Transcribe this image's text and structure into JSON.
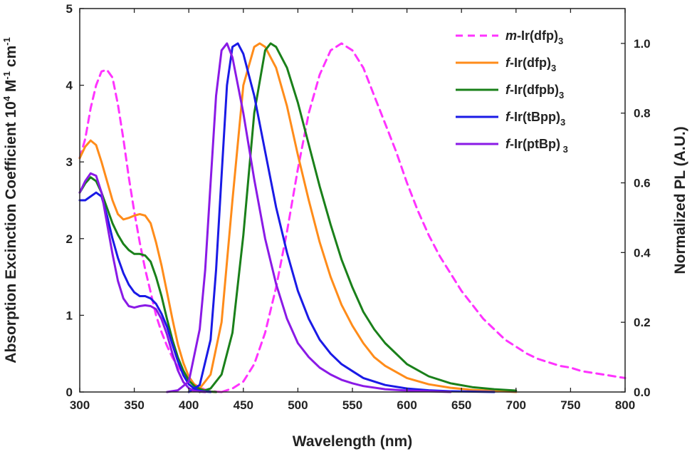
{
  "chart_data": {
    "type": "line",
    "title": "",
    "xlabel": "Wavelength (nm)",
    "ylabel_left": "Absorption Excinction Coefficient 10⁴ M⁻¹ cm⁻¹",
    "ylabel_right": "Normalized PL (A.U.)",
    "xlim": [
      300,
      800
    ],
    "ylim_left": [
      0,
      5
    ],
    "ylim_right": [
      0,
      1.1
    ],
    "x_ticks": [
      300,
      350,
      400,
      450,
      500,
      550,
      600,
      650,
      700,
      750,
      800
    ],
    "y_left_ticks": [
      0,
      1,
      2,
      3,
      4,
      5
    ],
    "y_right_ticks": [
      "0.0",
      "0.2",
      "0.4",
      "0.6",
      "0.8",
      "1.0"
    ],
    "grid": false,
    "legend_position": "top-right",
    "series": [
      {
        "name": "m-Ir(dfp)3",
        "legend_prefix": "m",
        "legend_rest": "-Ir(dfp)",
        "legend_sub": "3",
        "color": "#ff33ff",
        "dashed": true,
        "absorption": {
          "x": [
            300,
            305,
            310,
            315,
            320,
            325,
            330,
            335,
            340,
            345,
            350,
            355,
            360,
            365,
            370,
            375,
            380,
            385,
            390,
            395,
            400,
            405,
            410,
            415,
            420,
            425,
            430
          ],
          "y": [
            3.05,
            3.3,
            3.7,
            4.0,
            4.18,
            4.2,
            4.1,
            3.75,
            3.3,
            2.8,
            2.35,
            1.95,
            1.6,
            1.3,
            1.0,
            0.78,
            0.6,
            0.45,
            0.33,
            0.24,
            0.16,
            0.1,
            0.06,
            0.03,
            0.015,
            0.005,
            0.0
          ]
        },
        "pl": {
          "x": [
            430,
            440,
            450,
            460,
            470,
            480,
            490,
            500,
            510,
            520,
            530,
            540,
            550,
            560,
            570,
            580,
            590,
            600,
            610,
            620,
            630,
            640,
            650,
            660,
            670,
            680,
            690,
            700,
            710,
            720,
            730,
            740,
            750,
            760,
            770,
            780,
            790,
            800
          ],
          "y": [
            0.0,
            0.01,
            0.03,
            0.08,
            0.17,
            0.3,
            0.46,
            0.64,
            0.8,
            0.91,
            0.98,
            1.0,
            0.98,
            0.93,
            0.85,
            0.77,
            0.69,
            0.6,
            0.52,
            0.45,
            0.39,
            0.34,
            0.29,
            0.25,
            0.21,
            0.18,
            0.15,
            0.13,
            0.11,
            0.095,
            0.085,
            0.075,
            0.07,
            0.06,
            0.055,
            0.05,
            0.045,
            0.04
          ]
        }
      },
      {
        "name": "f-Ir(dfp)3",
        "legend_prefix": "f",
        "legend_rest": "-Ir(dfp)",
        "legend_sub": "3",
        "color": "#ff8c1a",
        "dashed": false,
        "absorption": {
          "x": [
            300,
            305,
            310,
            315,
            320,
            325,
            330,
            335,
            340,
            345,
            350,
            355,
            360,
            365,
            370,
            375,
            380,
            385,
            390,
            395,
            400,
            405,
            410,
            415,
            420,
            425
          ],
          "y": [
            3.05,
            3.2,
            3.28,
            3.22,
            3.0,
            2.75,
            2.5,
            2.32,
            2.25,
            2.27,
            2.3,
            2.32,
            2.3,
            2.2,
            1.95,
            1.65,
            1.3,
            0.95,
            0.62,
            0.38,
            0.2,
            0.1,
            0.05,
            0.02,
            0.005,
            0.0
          ]
        },
        "pl": {
          "x": [
            400,
            410,
            420,
            430,
            440,
            450,
            460,
            465,
            470,
            480,
            490,
            500,
            510,
            520,
            530,
            540,
            550,
            560,
            570,
            580,
            600,
            620,
            640,
            660,
            680,
            700
          ],
          "y": [
            0.0,
            0.01,
            0.05,
            0.2,
            0.55,
            0.88,
            0.99,
            1.0,
            0.99,
            0.93,
            0.82,
            0.68,
            0.55,
            0.43,
            0.33,
            0.25,
            0.19,
            0.14,
            0.1,
            0.075,
            0.04,
            0.022,
            0.012,
            0.006,
            0.003,
            0.0
          ]
        }
      },
      {
        "name": "f-Ir(dfpb)3",
        "legend_prefix": "f",
        "legend_rest": "-Ir(dfpb)",
        "legend_sub": "3",
        "color": "#1a801a",
        "dashed": false,
        "absorption": {
          "x": [
            300,
            305,
            310,
            315,
            320,
            325,
            330,
            335,
            340,
            345,
            350,
            355,
            360,
            365,
            370,
            375,
            380,
            385,
            390,
            395,
            400,
            405,
            410,
            415,
            420,
            425
          ],
          "y": [
            2.6,
            2.72,
            2.8,
            2.75,
            2.6,
            2.4,
            2.2,
            2.05,
            1.93,
            1.85,
            1.8,
            1.8,
            1.78,
            1.7,
            1.5,
            1.25,
            0.95,
            0.68,
            0.45,
            0.28,
            0.15,
            0.08,
            0.04,
            0.015,
            0.005,
            0.0
          ]
        },
        "pl": {
          "x": [
            410,
            420,
            430,
            440,
            450,
            460,
            470,
            475,
            480,
            490,
            500,
            510,
            520,
            530,
            540,
            550,
            560,
            570,
            580,
            600,
            620,
            640,
            660,
            680,
            700
          ],
          "y": [
            0.0,
            0.01,
            0.05,
            0.17,
            0.45,
            0.8,
            0.98,
            1.0,
            0.99,
            0.93,
            0.83,
            0.71,
            0.59,
            0.48,
            0.38,
            0.3,
            0.23,
            0.18,
            0.14,
            0.08,
            0.045,
            0.025,
            0.014,
            0.008,
            0.004
          ]
        }
      },
      {
        "name": "f-Ir(tBpp)3",
        "legend_prefix": "f",
        "legend_rest": "-Ir(tBpp)",
        "legend_sub": "3",
        "color": "#1a1ae6",
        "dashed": false,
        "absorption": {
          "x": [
            300,
            305,
            310,
            315,
            320,
            325,
            330,
            335,
            340,
            345,
            350,
            355,
            360,
            365,
            370,
            375,
            380,
            385,
            390,
            395,
            400,
            405,
            410,
            415,
            420
          ],
          "y": [
            2.5,
            2.5,
            2.55,
            2.6,
            2.55,
            2.3,
            2.0,
            1.75,
            1.55,
            1.4,
            1.3,
            1.25,
            1.25,
            1.22,
            1.15,
            1.02,
            0.85,
            0.62,
            0.4,
            0.22,
            0.1,
            0.045,
            0.015,
            0.005,
            0.0
          ]
        },
        "pl": {
          "x": [
            400,
            410,
            420,
            425,
            430,
            435,
            440,
            445,
            450,
            460,
            470,
            480,
            490,
            500,
            510,
            520,
            530,
            540,
            550,
            560,
            580,
            600,
            620,
            640,
            660,
            680
          ],
          "y": [
            0.0,
            0.02,
            0.15,
            0.35,
            0.62,
            0.88,
            0.99,
            1.0,
            0.97,
            0.85,
            0.69,
            0.53,
            0.4,
            0.29,
            0.21,
            0.15,
            0.11,
            0.08,
            0.06,
            0.04,
            0.02,
            0.01,
            0.005,
            0.002,
            0.001,
            0.0
          ]
        }
      },
      {
        "name": "f-Ir(ptBp)3",
        "legend_prefix": "f",
        "legend_rest": "-Ir(ptBp)",
        "legend_sub": " 3",
        "color": "#8a1ae6",
        "dashed": false,
        "absorption": {
          "x": [
            300,
            305,
            310,
            315,
            320,
            325,
            330,
            335,
            340,
            345,
            350,
            355,
            360,
            365,
            370,
            375,
            380,
            385,
            390,
            395,
            400,
            405,
            410,
            415
          ],
          "y": [
            2.6,
            2.75,
            2.85,
            2.82,
            2.6,
            2.2,
            1.8,
            1.45,
            1.22,
            1.12,
            1.1,
            1.12,
            1.13,
            1.12,
            1.08,
            0.95,
            0.75,
            0.5,
            0.28,
            0.13,
            0.05,
            0.015,
            0.005,
            0.0
          ]
        },
        "pl": {
          "x": [
            380,
            390,
            400,
            410,
            415,
            420,
            425,
            430,
            435,
            440,
            450,
            460,
            470,
            480,
            490,
            500,
            510,
            520,
            530,
            540,
            550,
            560,
            580,
            600,
            620,
            640
          ],
          "y": [
            0.0,
            0.005,
            0.03,
            0.18,
            0.35,
            0.6,
            0.85,
            0.98,
            1.0,
            0.96,
            0.8,
            0.61,
            0.44,
            0.31,
            0.21,
            0.14,
            0.1,
            0.07,
            0.05,
            0.035,
            0.025,
            0.017,
            0.008,
            0.004,
            0.002,
            0.0
          ]
        }
      }
    ]
  }
}
